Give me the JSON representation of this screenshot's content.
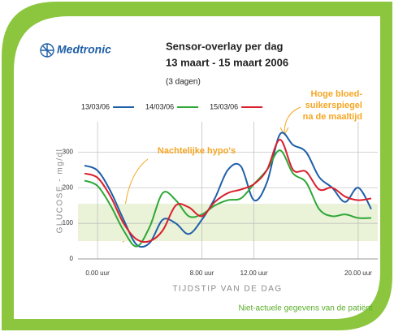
{
  "chart_data": {
    "type": "line",
    "brand": "Medtronic",
    "title": "Sensor-overlay per dag",
    "subtitle": "13 maart - 15 maart 2006",
    "period": "(3 dagen)",
    "y_label": "GLUCOSE - mg/dl",
    "x_label": "TIJDSTIP VAN DE DAG",
    "footer": "Niet-actuele gegevens van de patiënt",
    "annotations": [
      {
        "lines": [
          "Nachtelijke hypo's"
        ],
        "color": "#f5a623"
      },
      {
        "lines": [
          "Hoge bloed-",
          "suikerspiegel",
          "na de maaltijd"
        ],
        "color": "#f5a623"
      }
    ],
    "x": [
      -1,
      0,
      1,
      2,
      3,
      4,
      5,
      6,
      7,
      8,
      9,
      10,
      11,
      12,
      13,
      14,
      15,
      16,
      17,
      18,
      19,
      20,
      21
    ],
    "xlim": [
      -1.5,
      21.5
    ],
    "xticks": [
      {
        "value": 0,
        "label": "0.00 uur"
      },
      {
        "value": 8,
        "label": "8.00 uur"
      },
      {
        "value": 12,
        "label": "12.00 uur"
      },
      {
        "value": 20,
        "label": "20.00 uur"
      }
    ],
    "ylim": [
      0,
      385
    ],
    "yticks": [
      0,
      100,
      200,
      300
    ],
    "target_range": [
      50,
      155
    ],
    "target_color": "#eaf2d8",
    "grid": true,
    "series": [
      {
        "name": "13/03/06",
        "color": "#1f5fa8",
        "values": [
          262,
          248,
          190,
          110,
          40,
          45,
          110,
          100,
          70,
          110,
          170,
          250,
          260,
          165,
          215,
          350,
          320,
          300,
          230,
          200,
          160,
          200,
          140
        ]
      },
      {
        "name": "14/03/06",
        "color": "#2ea836",
        "values": [
          220,
          205,
          150,
          80,
          35,
          90,
          185,
          165,
          120,
          125,
          150,
          165,
          170,
          210,
          250,
          305,
          240,
          215,
          140,
          120,
          125,
          115,
          115
        ]
      },
      {
        "name": "15/03/06",
        "color": "#d9202e",
        "values": [
          240,
          228,
          175,
          100,
          55,
          50,
          80,
          150,
          145,
          120,
          160,
          185,
          195,
          210,
          250,
          335,
          250,
          245,
          195,
          200,
          175,
          165,
          170
        ]
      }
    ]
  }
}
